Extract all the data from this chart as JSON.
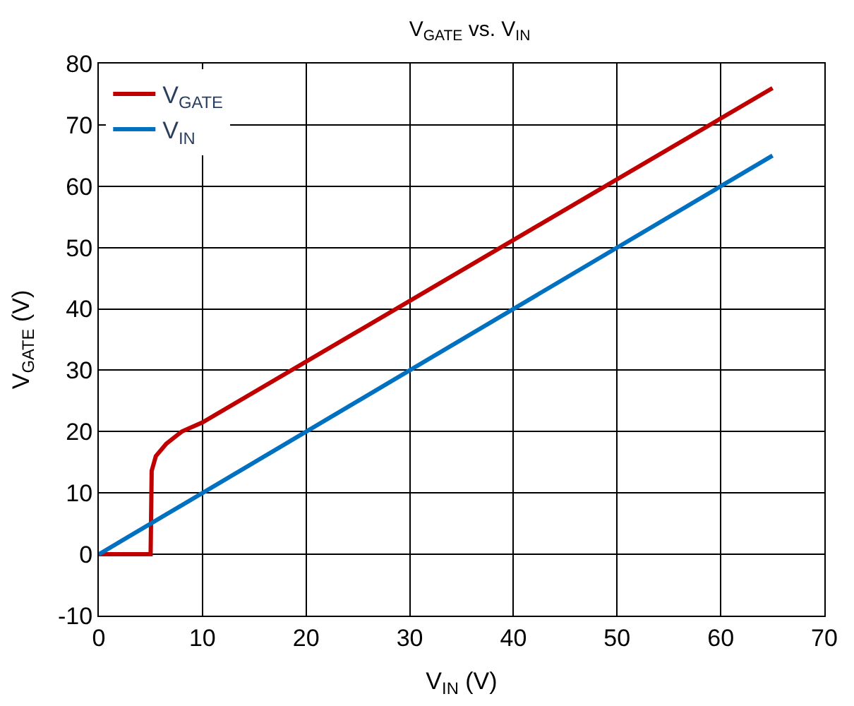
{
  "chart_data": {
    "type": "line",
    "title": "V$_{GATE}$ vs. V$_{IN}$",
    "xlabel": "V$_{IN}$ (V)",
    "ylabel": "V$_{GATE}$ (V)",
    "xlim": [
      0,
      70
    ],
    "xticks": [
      0,
      10,
      20,
      30,
      40,
      50,
      60,
      70
    ],
    "ylim": [
      -10,
      80
    ],
    "yticks": [
      -10,
      0,
      10,
      20,
      30,
      40,
      50,
      60,
      70,
      80
    ],
    "grid": true,
    "legend": "top left",
    "marker": "none",
    "line_style": "solid",
    "series": [
      {
        "name": "V$_{GATE}$",
        "color": "#c00000",
        "x": [
          0,
          5,
          5.1,
          5.5,
          6.5,
          8,
          10,
          65
        ],
        "values": [
          0,
          0,
          13.6,
          16,
          18,
          20,
          21.5,
          76
        ]
      },
      {
        "name": "V$_{IN}$",
        "color": "#0070c0",
        "x": [
          0,
          65
        ],
        "values": [
          0,
          65
        ]
      }
    ]
  }
}
